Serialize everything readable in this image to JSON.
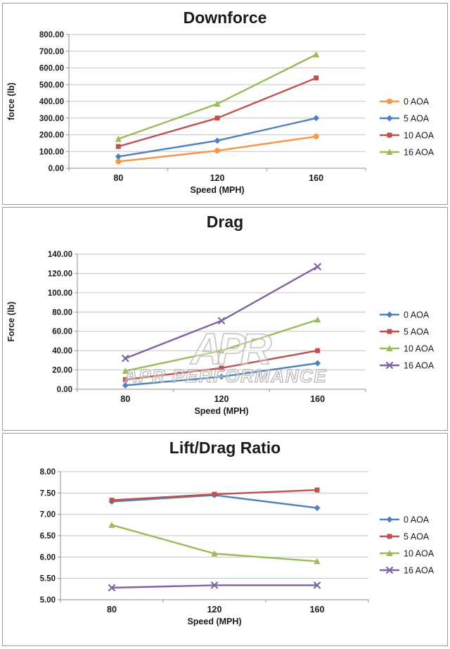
{
  "page": {
    "background": "#ffffff",
    "panel_border": "#9c9c9c"
  },
  "chart_data": [
    {
      "type": "line",
      "title": "Downforce",
      "xlabel": "Speed (MPH)",
      "ylabel": "force (lb)",
      "categories": [
        "80",
        "120",
        "160"
      ],
      "y_axis": {
        "min": 0,
        "max": 800,
        "step": 100,
        "decimals": 2
      },
      "grid": true,
      "legend_position": "right",
      "series": [
        {
          "name": "0 AOA",
          "color": "#F79646",
          "marker": "circle",
          "values": [
            40,
            105,
            190
          ]
        },
        {
          "name": "5 AOA",
          "color": "#4F81BD",
          "marker": "diamond",
          "values": [
            70,
            165,
            300
          ]
        },
        {
          "name": "10 AOA",
          "color": "#C0504D",
          "marker": "square",
          "values": [
            130,
            300,
            540
          ]
        },
        {
          "name": "16 AOA",
          "color": "#9BBB59",
          "marker": "triangle",
          "values": [
            175,
            385,
            680
          ]
        }
      ]
    },
    {
      "type": "line",
      "title": "Drag",
      "xlabel": "Speed (MPH)",
      "ylabel": "Force (lb)",
      "categories": [
        "80",
        "120",
        "160"
      ],
      "y_axis": {
        "min": 0,
        "max": 140,
        "step": 20,
        "decimals": 2
      },
      "grid": true,
      "legend_position": "right",
      "watermark": {
        "logo": "APR",
        "text": "APR PERFORMANCE"
      },
      "series": [
        {
          "name": "0 AOA",
          "color": "#4F81BD",
          "marker": "diamond",
          "values": [
            4,
            13,
            27
          ]
        },
        {
          "name": "5 AOA",
          "color": "#C0504D",
          "marker": "square",
          "values": [
            10,
            22,
            40
          ]
        },
        {
          "name": "10 AOA",
          "color": "#9BBB59",
          "marker": "triangle",
          "values": [
            19,
            40,
            72
          ]
        },
        {
          "name": "16 AOA",
          "color": "#8064A2",
          "marker": "x",
          "values": [
            32,
            71,
            127
          ]
        }
      ]
    },
    {
      "type": "line",
      "title": "Lift/Drag Ratio",
      "xlabel": "Speed (MPH)",
      "ylabel": "",
      "categories": [
        "80",
        "120",
        "160"
      ],
      "y_axis": {
        "min": 5,
        "max": 8,
        "step": 0.5,
        "decimals": 2
      },
      "grid": true,
      "legend_position": "right",
      "series": [
        {
          "name": "0 AOA",
          "color": "#4F81BD",
          "marker": "diamond",
          "values": [
            7.3,
            7.45,
            7.15
          ]
        },
        {
          "name": "5 AOA",
          "color": "#C0504D",
          "marker": "square",
          "values": [
            7.33,
            7.47,
            7.57
          ]
        },
        {
          "name": "10 AOA",
          "color": "#9BBB59",
          "marker": "triangle",
          "values": [
            6.75,
            6.08,
            5.9
          ]
        },
        {
          "name": "16 AOA",
          "color": "#8064A2",
          "marker": "x",
          "values": [
            5.28,
            5.34,
            5.34
          ]
        }
      ]
    }
  ]
}
